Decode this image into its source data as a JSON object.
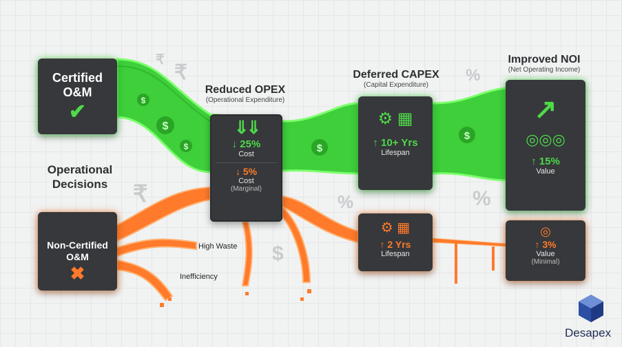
{
  "left": {
    "certified": "Certified O&M",
    "operational": "Operational Decisions",
    "noncertified": "Non-Certified O&M"
  },
  "opex": {
    "title": "Reduced OPEX",
    "subtitle": "(Operational Expenditure)",
    "top_value": "↓ 25%",
    "top_label": "Cost",
    "bottom_value": "↓ 5%",
    "bottom_label": "Cost",
    "bottom_note": "(Marginal)"
  },
  "capex": {
    "title": "Deferred CAPEX",
    "subtitle": "(Capital Expenditure)",
    "top_value": "↑ 10+ Yrs",
    "top_label": "Lifespan",
    "bottom_value": "↑ 2 Yrs",
    "bottom_label": "Lifespan"
  },
  "noi": {
    "title": "Improved NOI",
    "subtitle": "(Net Operating Income)",
    "top_value": "↑ 15%",
    "top_label": "Value",
    "bottom_value": "↑ 3%",
    "bottom_label": "Value",
    "bottom_note": "(Minimal)"
  },
  "annotations": {
    "waste": "High Waste",
    "inefficiency": "Inefficiency"
  },
  "logo": "Desapex",
  "colors": {
    "green": "#4fd84a",
    "orange": "#ff7a2a",
    "card": "#36383b"
  }
}
